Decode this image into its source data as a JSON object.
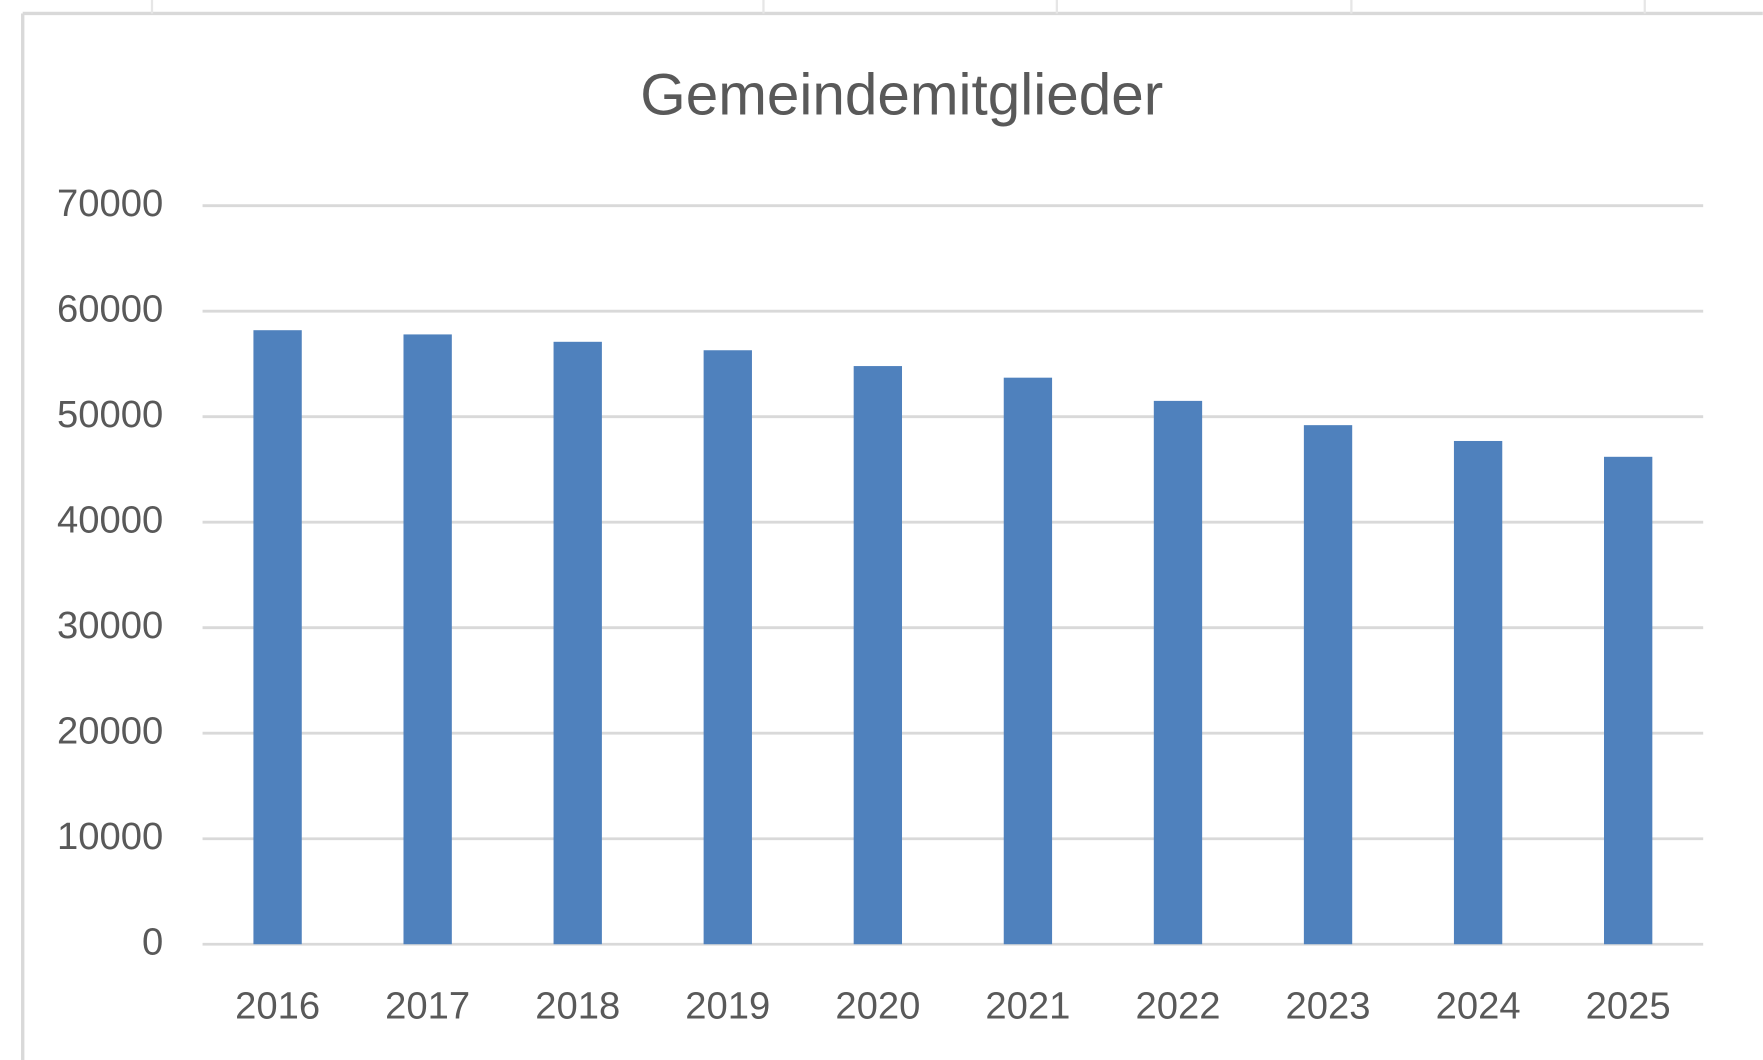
{
  "chart_data": {
    "type": "bar",
    "title": "Gemeindemitglieder",
    "categories": [
      "2016",
      "2017",
      "2018",
      "2019",
      "2020",
      "2021",
      "2022",
      "2023",
      "2024",
      "2025"
    ],
    "values": [
      58200,
      57800,
      57100,
      56300,
      54800,
      53700,
      51500,
      49200,
      47700,
      46200
    ],
    "color": "#4f81bd",
    "ylim": [
      0,
      70000
    ],
    "yticks": [
      0,
      10000,
      20000,
      30000,
      40000,
      50000,
      60000,
      70000
    ],
    "grid": true
  }
}
